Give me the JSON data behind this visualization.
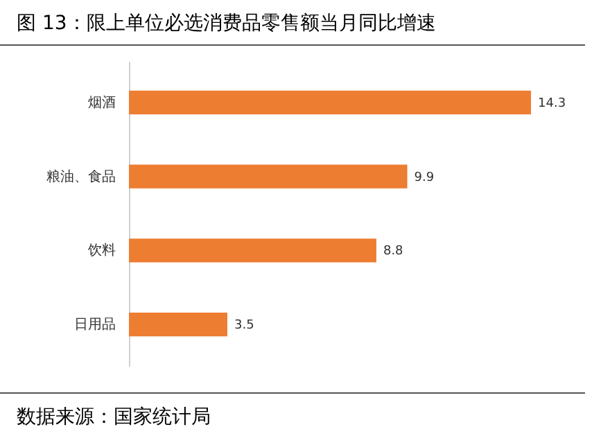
{
  "chart_data": {
    "type": "bar",
    "title": "图 13：限上单位必选消费品零售额当月同比增速",
    "orientation": "horizontal",
    "categories": [
      "烟酒",
      "粮油、食品",
      "饮料",
      "日用品"
    ],
    "values": [
      14.3,
      9.9,
      8.8,
      3.5
    ],
    "color": "#ed7d31",
    "data_labels": true,
    "annotations": [
      "数据来源：国家统计局"
    ]
  }
}
